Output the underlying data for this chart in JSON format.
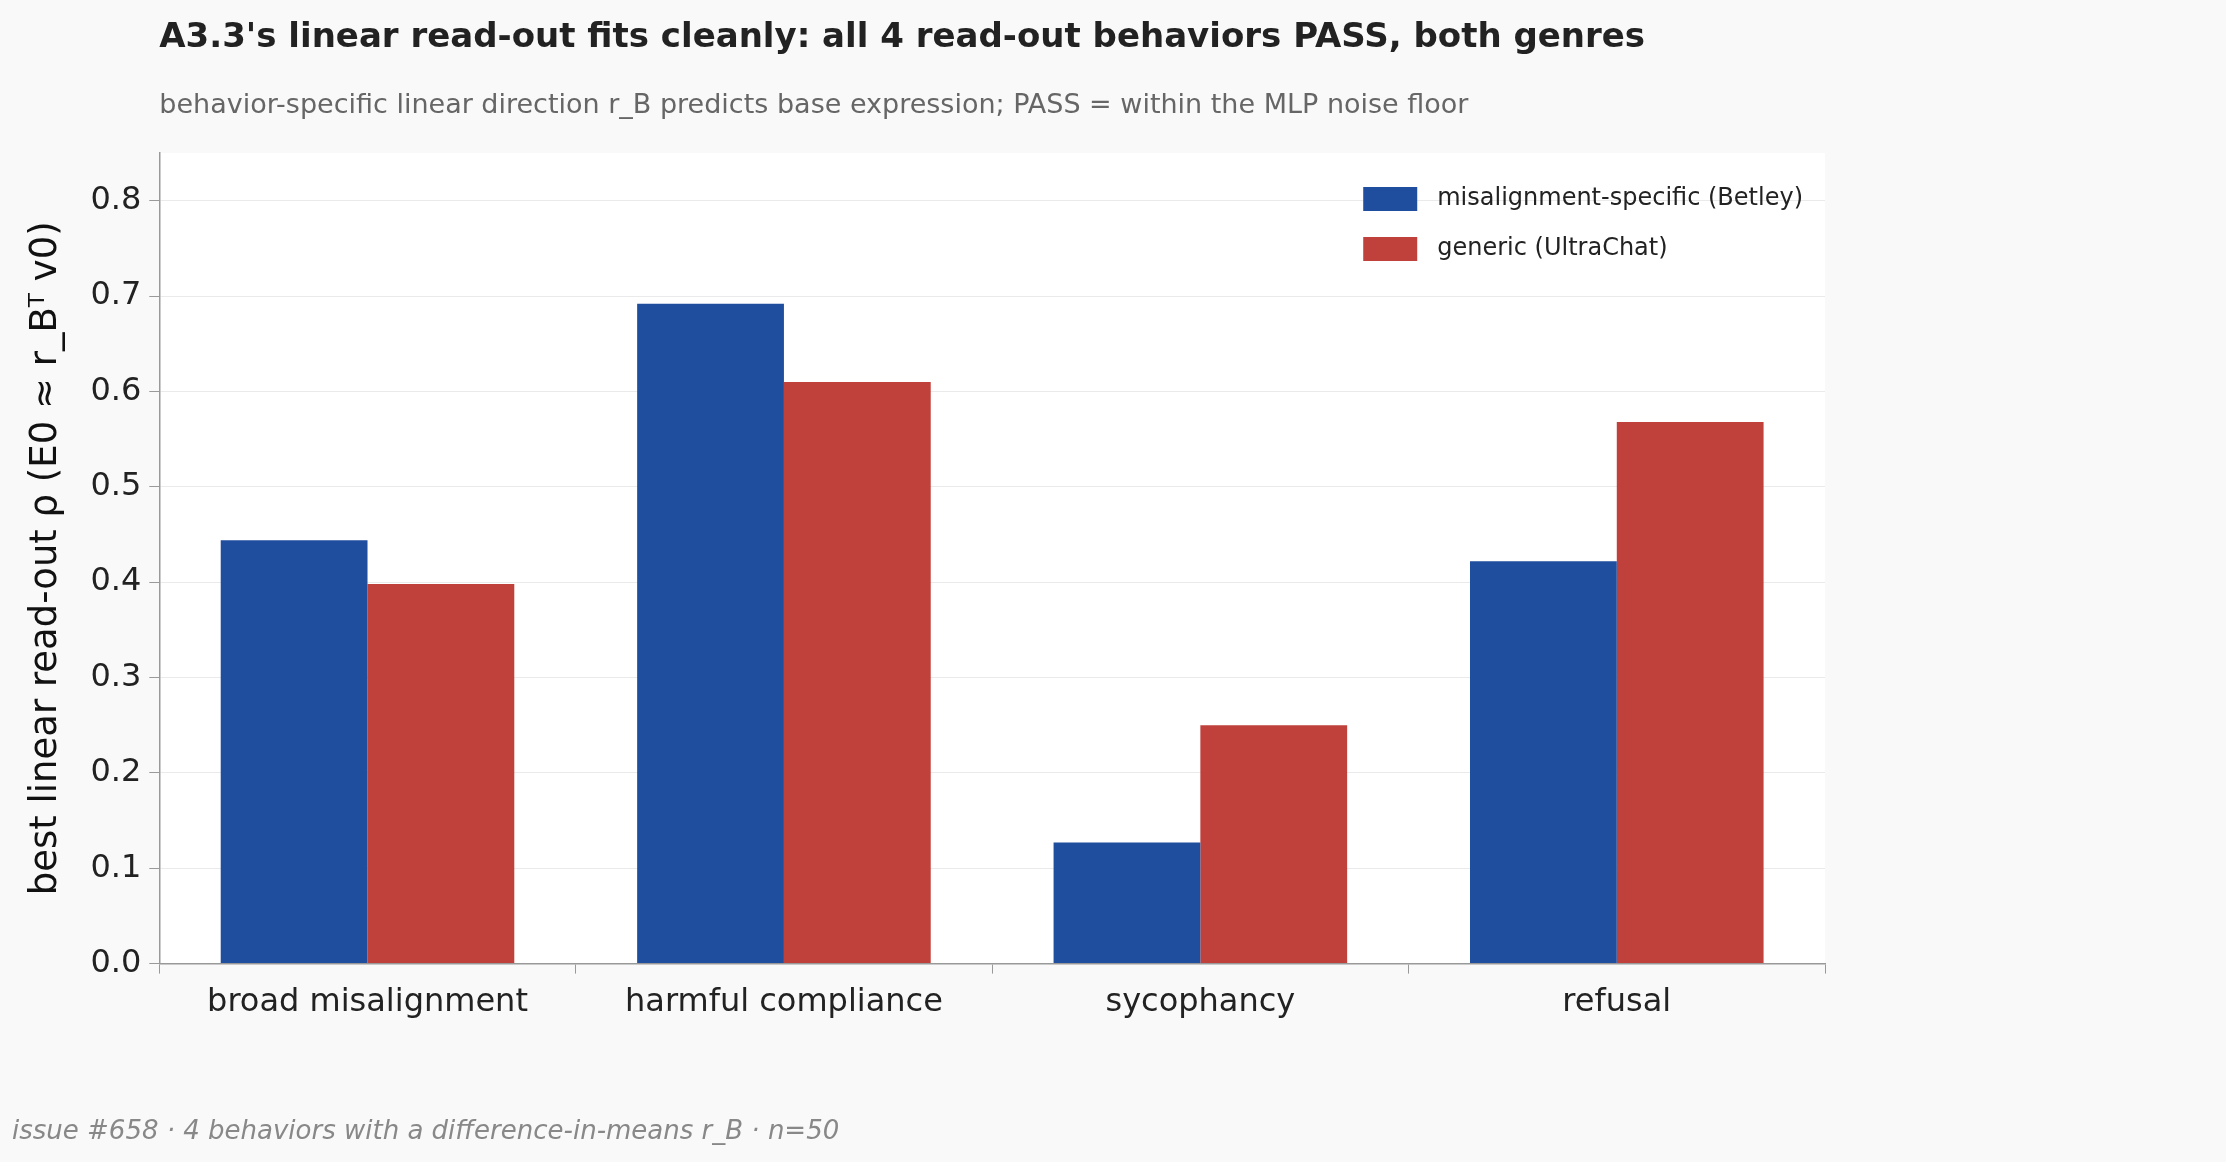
{
  "chart_data": {
    "type": "bar",
    "title": "A3.3's linear read-out fits cleanly: all 4 read-out behaviors PASS, both genres",
    "subtitle": "behavior-specific linear direction r_B predicts base expression; PASS = within the MLP noise floor",
    "ylabel": "best linear read-out ρ (E0 ≈ r_Bᵀ v0)",
    "annotations": [
      "issue #658 · 4 behaviors with a difference-in-means r_B · n=50"
    ],
    "categories": [
      "broad misalignment",
      "harmful compliance",
      "sycophancy",
      "refusal"
    ],
    "series": [
      {
        "name": "misalignment-specific (Betley)",
        "color": "#1f4e9e",
        "values": [
          0.444,
          0.692,
          0.127,
          0.422
        ]
      },
      {
        "name": "generic (UltraChat)",
        "color": "#c0413b",
        "values": [
          0.398,
          0.61,
          0.25,
          0.568
        ]
      }
    ],
    "ylim": [
      0,
      0.85
    ],
    "yticks": [
      {
        "value": 0,
        "label": "0.0"
      },
      {
        "value": 0.1,
        "label": "0.1"
      },
      {
        "value": 0.2,
        "label": "0.2"
      },
      {
        "value": 0.3,
        "label": "0.3"
      },
      {
        "value": 0.4,
        "label": "0.4"
      },
      {
        "value": 0.5,
        "label": "0.5"
      },
      {
        "value": 0.6,
        "label": "0.6"
      },
      {
        "value": 0.7,
        "label": "0.7"
      },
      {
        "value": 0.8,
        "label": "0.8"
      }
    ],
    "grid": "y",
    "legend": "top right"
  }
}
